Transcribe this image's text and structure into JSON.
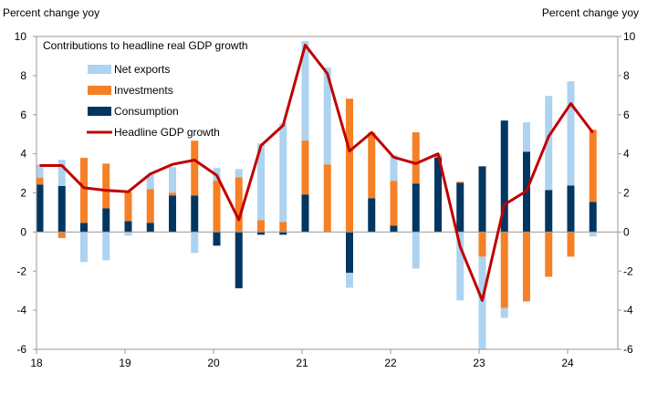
{
  "chart_data": {
    "type": "bar",
    "stacked": true,
    "title": "Contributions to headline real GDP growth",
    "ylabel_left": "Percent change yoy",
    "ylabel_right": "Percent change yoy",
    "ylim": [
      -6,
      10
    ],
    "yticks": [
      -6,
      -4,
      -2,
      0,
      2,
      4,
      6,
      8,
      10
    ],
    "xtick_labels": [
      "18",
      "19",
      "20",
      "21",
      "22",
      "23",
      "24"
    ],
    "categories": [
      "18Q1",
      "18Q2",
      "18Q3",
      "18Q4",
      "19Q1",
      "19Q2",
      "19Q3",
      "19Q4",
      "20Q1",
      "20Q2",
      "20Q3",
      "20Q4",
      "21Q1",
      "21Q2",
      "21Q3",
      "21Q4",
      "22Q1",
      "22Q2",
      "22Q3",
      "22Q4",
      "23Q1",
      "23Q2",
      "23Q3",
      "23Q4",
      "24Q1",
      "24Q2"
    ],
    "legend_position": "top-left",
    "grid": false,
    "series": [
      {
        "name": "Net exports",
        "kind": "bar",
        "color": "#ADD3F0",
        "values": [
          0.69,
          1.34,
          -1.54,
          -1.45,
          -0.19,
          0.72,
          1.31,
          -1.07,
          0.65,
          0.42,
          3.92,
          5.05,
          5.09,
          4.95,
          -0.76,
          0,
          1.31,
          -1.87,
          0.1,
          -3.5,
          -5.6,
          -0.51,
          1.5,
          4.81,
          5.33,
          -0.23
        ]
      },
      {
        "name": "Investments",
        "kind": "bar",
        "color": "#F58025",
        "values": [
          0.34,
          -0.31,
          3.32,
          2.29,
          1.5,
          1.73,
          0.14,
          2.8,
          2.62,
          2.8,
          0.61,
          0.51,
          2.76,
          3.46,
          6.82,
          3.36,
          2.29,
          2.62,
          0.1,
          0.05,
          -1.26,
          -3.88,
          -3.55,
          -2.29,
          -1.26,
          3.69
        ]
      },
      {
        "name": "Consumption",
        "kind": "bar",
        "color": "#003660",
        "values": [
          2.43,
          2.35,
          0.47,
          1.21,
          0.56,
          0.47,
          1.87,
          1.87,
          -0.7,
          -2.88,
          -0.14,
          -0.14,
          1.92,
          0,
          -2.09,
          1.73,
          0.33,
          2.48,
          3.8,
          2.52,
          3.36,
          5.7,
          4.11,
          2.15,
          2.38,
          1.54
        ]
      },
      {
        "name": "Headline GDP growth",
        "kind": "line",
        "color": "#C00000",
        "values": [
          3.4,
          3.4,
          2.26,
          2.13,
          2.06,
          2.97,
          3.46,
          3.68,
          2.9,
          0.62,
          4.42,
          5.45,
          9.56,
          8.1,
          4.14,
          5.09,
          3.82,
          3.5,
          4.0,
          -0.75,
          -3.5,
          1.4,
          2.1,
          4.89,
          6.57,
          5.08
        ]
      }
    ]
  }
}
